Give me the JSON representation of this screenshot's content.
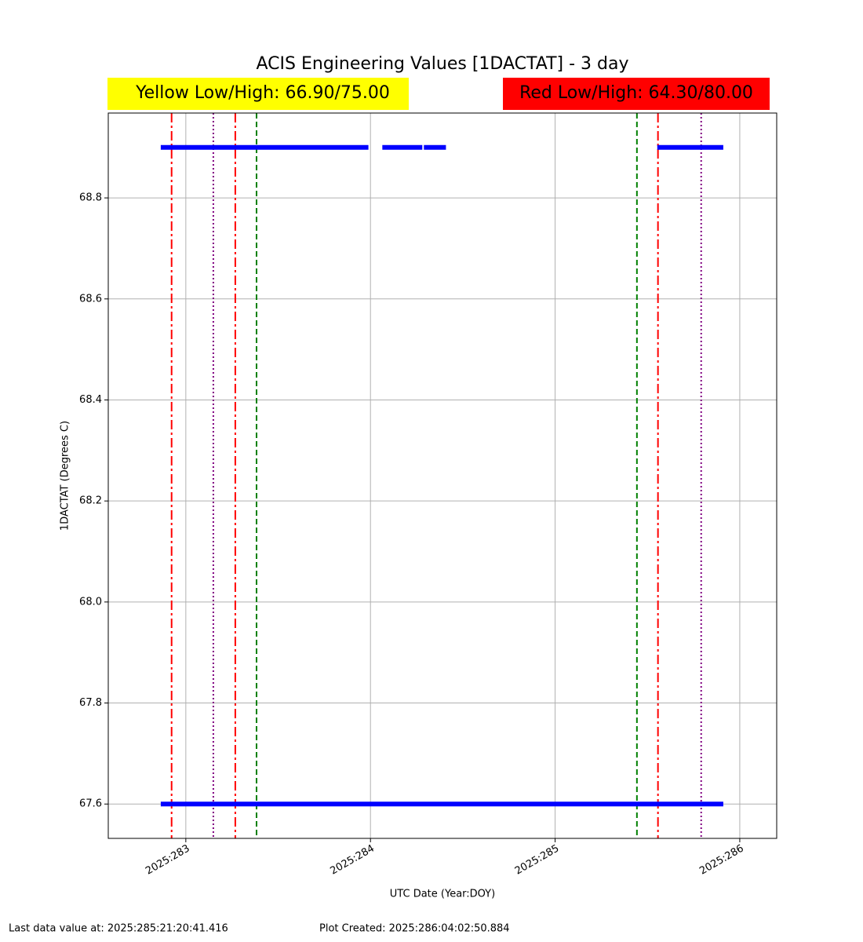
{
  "chart_data": {
    "type": "line",
    "title": "ACIS Engineering Values [1DACTAT] - 3 day",
    "limits": [
      {
        "text": "Yellow Low/High: 66.90/75.00",
        "color": "#ffff00"
      },
      {
        "text": "Red Low/High: 64.30/80.00",
        "color": "#ff0000"
      }
    ],
    "x_label": "UTC Date (Year:DOY)",
    "y_label": "1DACTAT (Degrees C)",
    "xlim": [
      282.58,
      286.2
    ],
    "xticks": [
      {
        "value": 283,
        "label": "2025:283"
      },
      {
        "value": 284,
        "label": "2025:284"
      },
      {
        "value": 285,
        "label": "2025:285"
      },
      {
        "value": 286,
        "label": "2025:286"
      }
    ],
    "ylim": [
      67.532,
      68.968
    ],
    "yticks": [
      {
        "value": 67.6,
        "label": "67.6"
      },
      {
        "value": 67.8,
        "label": "67.8"
      },
      {
        "value": 68.0,
        "label": "68.0"
      },
      {
        "value": 68.2,
        "label": "68.2"
      },
      {
        "value": 68.4,
        "label": "68.4"
      },
      {
        "value": 68.6,
        "label": "68.6"
      },
      {
        "value": 68.8,
        "label": "68.8"
      }
    ],
    "grid": true,
    "series": [
      {
        "color": "#0000ff",
        "x": [
          282.877,
          283.949,
          null,
          283.974,
          null,
          284.077,
          284.268,
          null,
          284.302,
          284.396,
          null,
          285.566,
          285.898
        ],
        "values": [
          68.9,
          68.9,
          null,
          68.9,
          null,
          68.9,
          68.9,
          null,
          68.9,
          68.9,
          null,
          68.9,
          68.9
        ]
      },
      {
        "color": "#0000ff",
        "x": [
          282.877,
          285.898
        ],
        "values": [
          67.6,
          67.6
        ]
      }
    ],
    "vlines": [
      {
        "x": 282.923,
        "color": "#ff0000",
        "style": "dashdot"
      },
      {
        "x": 283.149,
        "color": "#800080",
        "style": "dotted"
      },
      {
        "x": 283.268,
        "color": "#ff0000",
        "style": "dashdot"
      },
      {
        "x": 283.383,
        "color": "#008000",
        "style": "dashed"
      },
      {
        "x": 285.443,
        "color": "#008000",
        "style": "dashed"
      },
      {
        "x": 285.557,
        "color": "#ff0000",
        "style": "dashdot"
      },
      {
        "x": 285.791,
        "color": "#800080",
        "style": "dotted"
      }
    ],
    "notes": [
      "Last data value at: 2025:285:21:20:41.416",
      "Plot Created: 2025:286:04:02:50.884"
    ]
  }
}
